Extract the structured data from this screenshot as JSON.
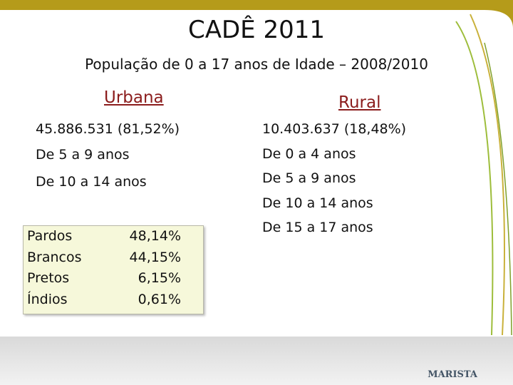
{
  "title": "CADÊ 2011",
  "subtitle": "População de 0 a 17 anos de Idade – 2008/2010",
  "urbana": {
    "heading": "Urbana",
    "items": [
      "45.886.531 (81,52%)",
      "De 5 a 9 anos",
      "De 10 a 14 anos"
    ]
  },
  "rural": {
    "heading": "Rural",
    "items": [
      "10.403.637 (18,48%)",
      "De 0 a 4 anos",
      "De 5 a 9 anos",
      "De 10 a 14 anos",
      "De 15 a 17 anos"
    ]
  },
  "table": {
    "rows": [
      [
        "Pardos",
        "48,14%"
      ],
      [
        "Brancos",
        "44,15%"
      ],
      [
        "Pretos",
        "6,15%"
      ],
      [
        "Índios",
        "0,61%"
      ]
    ]
  },
  "footer": {
    "brand": "MARISTA"
  }
}
